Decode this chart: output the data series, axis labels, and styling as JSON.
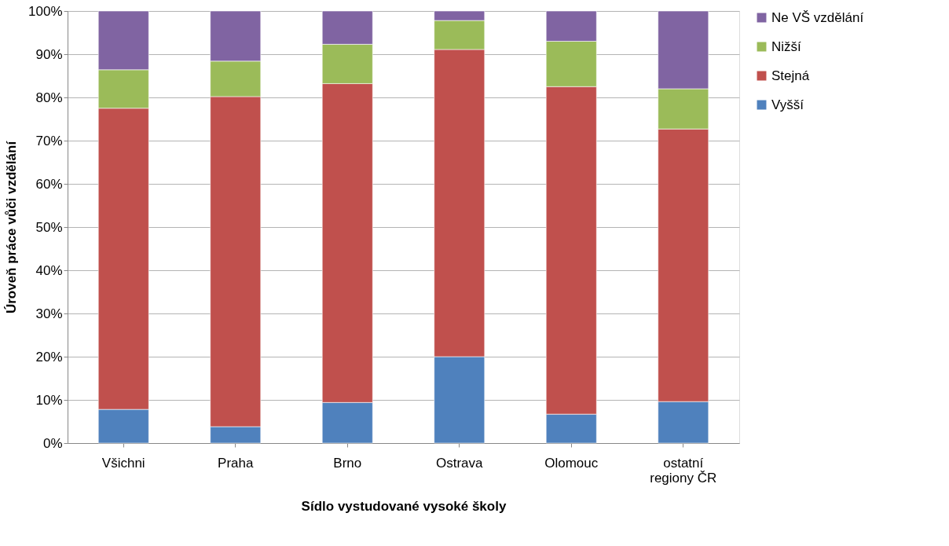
{
  "chart_data": {
    "type": "bar",
    "stacked": true,
    "xlabel": "Sídlo vystudované vysoké školy",
    "ylabel": "Úroveň práce vůči vzdělání",
    "categories": [
      "Všichni",
      "Praha",
      "Brno",
      "Ostrava",
      "Olomouc",
      "ostatní regiony ČR"
    ],
    "series": [
      {
        "name": "Vyšší",
        "color": "#4f81bd",
        "values": [
          7.8,
          3.8,
          9.4,
          20.0,
          6.7,
          9.6
        ]
      },
      {
        "name": "Stejná",
        "color": "#c0504d",
        "values": [
          69.7,
          76.4,
          73.8,
          71.1,
          75.8,
          63.1
        ]
      },
      {
        "name": "Nižší",
        "color": "#9bbb59",
        "values": [
          8.9,
          8.2,
          9.1,
          6.7,
          10.5,
          9.3
        ]
      },
      {
        "name": "Ne VŠ vzdělání",
        "color": "#8064a2",
        "values": [
          13.6,
          11.6,
          7.7,
          2.2,
          7.0,
          18.0
        ]
      }
    ],
    "ylim": [
      0,
      100
    ],
    "yticks": [
      {
        "value": 0,
        "label": "0%"
      },
      {
        "value": 10,
        "label": "10%"
      },
      {
        "value": 20,
        "label": "20%"
      },
      {
        "value": 30,
        "label": "30%"
      },
      {
        "value": 40,
        "label": "40%"
      },
      {
        "value": 50,
        "label": "50%"
      },
      {
        "value": 60,
        "label": "60%"
      },
      {
        "value": 70,
        "label": "70%"
      },
      {
        "value": 80,
        "label": "80%"
      },
      {
        "value": 90,
        "label": "90%"
      },
      {
        "value": 100,
        "label": "100%"
      }
    ],
    "grid": true,
    "legend": "right"
  }
}
